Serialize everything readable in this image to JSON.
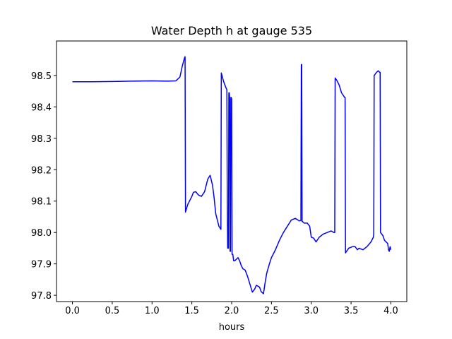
{
  "chart_data": {
    "type": "line",
    "title": "Water Depth h at gauge 535",
    "xlabel": "hours",
    "ylabel": "",
    "xlim": [
      -0.2,
      4.2
    ],
    "ylim": [
      97.78,
      98.61
    ],
    "xticks": [
      0.0,
      0.5,
      1.0,
      1.5,
      2.0,
      2.5,
      3.0,
      3.5,
      4.0
    ],
    "xtick_labels": [
      "0.0",
      "0.5",
      "1.0",
      "1.5",
      "2.0",
      "2.5",
      "3.0",
      "3.5",
      "4.0"
    ],
    "yticks": [
      97.8,
      97.9,
      98.0,
      98.1,
      98.2,
      98.3,
      98.4,
      98.5
    ],
    "ytick_labels": [
      "97.8",
      "97.9",
      "98.0",
      "98.1",
      "98.2",
      "98.3",
      "98.4",
      "98.5"
    ],
    "grid": false,
    "line_color": "#0000ff",
    "series": [
      {
        "x": [
          0.0,
          0.25,
          0.5,
          0.75,
          1.0,
          1.2,
          1.3,
          1.35,
          1.38,
          1.41,
          1.415,
          1.42,
          1.45,
          1.5,
          1.52,
          1.55,
          1.58,
          1.62,
          1.66,
          1.7,
          1.73,
          1.76,
          1.78,
          1.8,
          1.84,
          1.865,
          1.87,
          1.9,
          1.93,
          1.94,
          1.945,
          1.95,
          1.96,
          1.965,
          1.97,
          1.975,
          1.98,
          1.985,
          1.99,
          1.995,
          2.0,
          2.005,
          2.01,
          2.015,
          2.02,
          2.025,
          2.03,
          2.04,
          2.06,
          2.08,
          2.1,
          2.12,
          2.14,
          2.17,
          2.2,
          2.23,
          2.26,
          2.29,
          2.31,
          2.35,
          2.37,
          2.4,
          2.42,
          2.44,
          2.48,
          2.5,
          2.55,
          2.6,
          2.65,
          2.7,
          2.75,
          2.8,
          2.85,
          2.87,
          2.875,
          2.88,
          2.885,
          2.89,
          2.91,
          2.95,
          2.98,
          3.0,
          3.03,
          3.06,
          3.1,
          3.15,
          3.2,
          3.25,
          3.285,
          3.29,
          3.295,
          3.3,
          3.32,
          3.35,
          3.38,
          3.42,
          3.425,
          3.43,
          3.47,
          3.52,
          3.55,
          3.58,
          3.6,
          3.65,
          3.7,
          3.75,
          3.78,
          3.785,
          3.79,
          3.82,
          3.84,
          3.86,
          3.865,
          3.87,
          3.9,
          3.92,
          3.94,
          3.96,
          3.97,
          3.98,
          3.99,
          4.0
        ],
        "y": [
          98.48,
          98.48,
          98.481,
          98.482,
          98.483,
          98.482,
          98.483,
          98.495,
          98.53,
          98.558,
          98.56,
          98.065,
          98.09,
          98.115,
          98.128,
          98.13,
          98.12,
          98.115,
          98.13,
          98.17,
          98.182,
          98.15,
          98.11,
          98.06,
          98.02,
          98.01,
          98.508,
          98.48,
          98.46,
          98.455,
          98.1,
          97.95,
          97.95,
          98.445,
          98.445,
          98.43,
          97.94,
          97.94,
          98.43,
          98.43,
          98.425,
          97.93,
          97.93,
          97.93,
          97.92,
          97.91,
          97.91,
          97.91,
          97.915,
          97.92,
          97.91,
          97.895,
          97.885,
          97.88,
          97.86,
          97.835,
          97.81,
          97.82,
          97.832,
          97.826,
          97.812,
          97.805,
          97.84,
          97.87,
          97.905,
          97.92,
          97.945,
          97.975,
          98.0,
          98.02,
          98.04,
          98.045,
          98.037,
          98.038,
          98.535,
          98.535,
          98.035,
          98.035,
          98.03,
          98.03,
          98.02,
          97.985,
          97.982,
          97.97,
          97.985,
          97.995,
          98.0,
          98.005,
          98.0,
          98.0,
          98.0,
          98.492,
          98.485,
          98.47,
          98.445,
          98.43,
          98.43,
          97.935,
          97.95,
          97.955,
          97.955,
          97.945,
          97.95,
          97.945,
          97.955,
          97.97,
          97.985,
          97.995,
          98.5,
          98.51,
          98.515,
          98.51,
          98.51,
          98.0,
          97.99,
          97.975,
          97.97,
          97.965,
          97.945,
          97.94,
          97.955,
          97.945
        ]
      }
    ]
  }
}
